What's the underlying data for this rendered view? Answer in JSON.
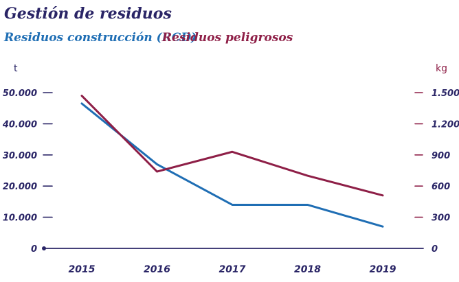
{
  "colors": {
    "title": "#2a2566",
    "axis": "#2a2566",
    "rcd": "#1f6eb4",
    "hazardous": "#8e1f47"
  },
  "chart_data": {
    "type": "line",
    "title": "Gestión de residuos",
    "categories": [
      "2015",
      "2016",
      "2017",
      "2018",
      "2019"
    ],
    "y_left": {
      "unit": "t",
      "range": [
        0,
        50000
      ],
      "ticks": [
        0,
        10000,
        20000,
        30000,
        40000,
        50000
      ],
      "tick_labels": [
        "0",
        "10.000",
        "20.000",
        "30.000",
        "40.000",
        "50.000"
      ]
    },
    "y_right": {
      "unit": "kg",
      "range": [
        0,
        1500
      ],
      "ticks": [
        0,
        300,
        600,
        900,
        1200,
        1500
      ],
      "tick_labels": [
        "0",
        "300",
        "600",
        "900",
        "1.200",
        "1.500"
      ]
    },
    "series": [
      {
        "name": "Residuos construcción (RCD)",
        "axis": "left",
        "color_key": "rcd",
        "values": [
          46500,
          27000,
          14000,
          14000,
          7000
        ]
      },
      {
        "name": "Residuos peligrosos",
        "axis": "right",
        "color_key": "hazardous",
        "values": [
          1470,
          740,
          930,
          700,
          510
        ]
      }
    ],
    "grid": false,
    "legend_position": "top-left"
  }
}
